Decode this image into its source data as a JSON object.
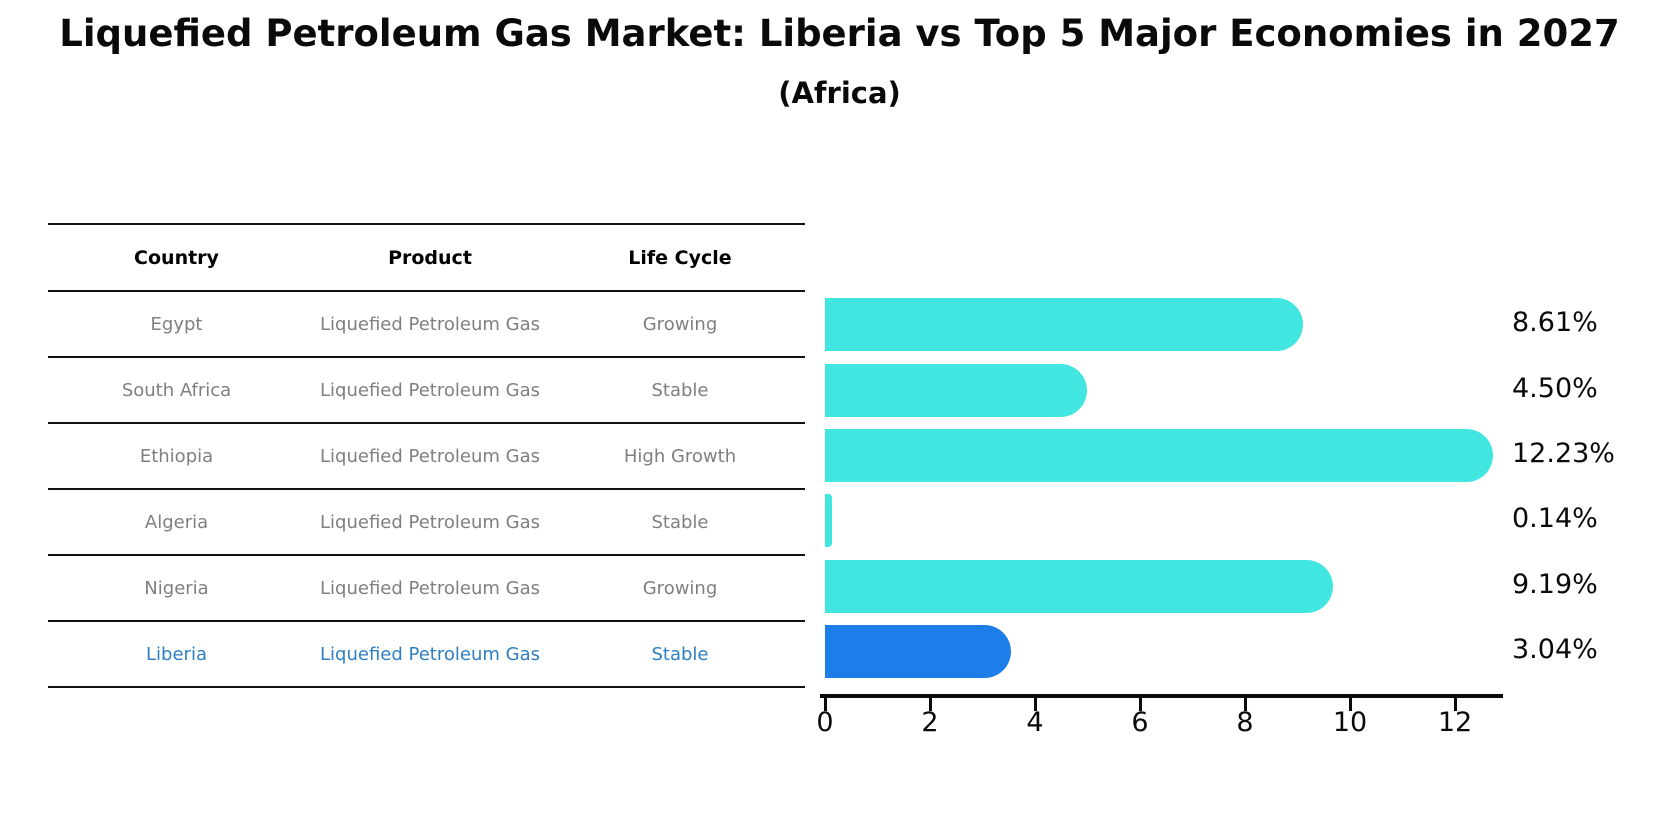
{
  "title": "Liquefied Petroleum Gas Market: Liberia vs Top 5 Major Economies in 2027",
  "subtitle": "(Africa)",
  "table": {
    "headers": [
      "Country",
      "Product",
      "Life Cycle"
    ],
    "rows": [
      {
        "country": "Egypt",
        "product": "Liquefied Petroleum Gas",
        "life_cycle": "Growing"
      },
      {
        "country": "South Africa",
        "product": "Liquefied Petroleum Gas",
        "life_cycle": "Stable"
      },
      {
        "country": "Ethiopia",
        "product": "Liquefied Petroleum Gas",
        "life_cycle": "High Growth"
      },
      {
        "country": "Algeria",
        "product": "Liquefied Petroleum Gas",
        "life_cycle": "Stable"
      },
      {
        "country": "Nigeria",
        "product": "Liquefied Petroleum Gas",
        "life_cycle": "Growing"
      },
      {
        "country": "Liberia",
        "product": "Liquefied Petroleum Gas",
        "life_cycle": "Stable"
      }
    ],
    "highlight_row": "Liberia"
  },
  "chart_data": {
    "type": "bar",
    "orientation": "horizontal",
    "categories": [
      "Egypt",
      "South Africa",
      "Ethiopia",
      "Algeria",
      "Nigeria",
      "Liberia"
    ],
    "values": [
      8.61,
      4.5,
      12.23,
      0.14,
      9.19,
      3.04
    ],
    "value_labels": [
      "8.61%",
      "4.50%",
      "12.23%",
      "0.14%",
      "9.19%",
      "3.04%"
    ],
    "xticks": [
      "0",
      "2",
      "4",
      "6",
      "8",
      "10",
      "12"
    ],
    "xtick_values": [
      0,
      2,
      4,
      6,
      8,
      10,
      12
    ],
    "xlim": [
      0,
      13
    ],
    "grid": false,
    "legend": false,
    "bar_color": "#41e6e0",
    "highlight_color": "#1e7ee9",
    "highlight_index": 5,
    "highlight_text_color": "#2e7fc2"
  }
}
